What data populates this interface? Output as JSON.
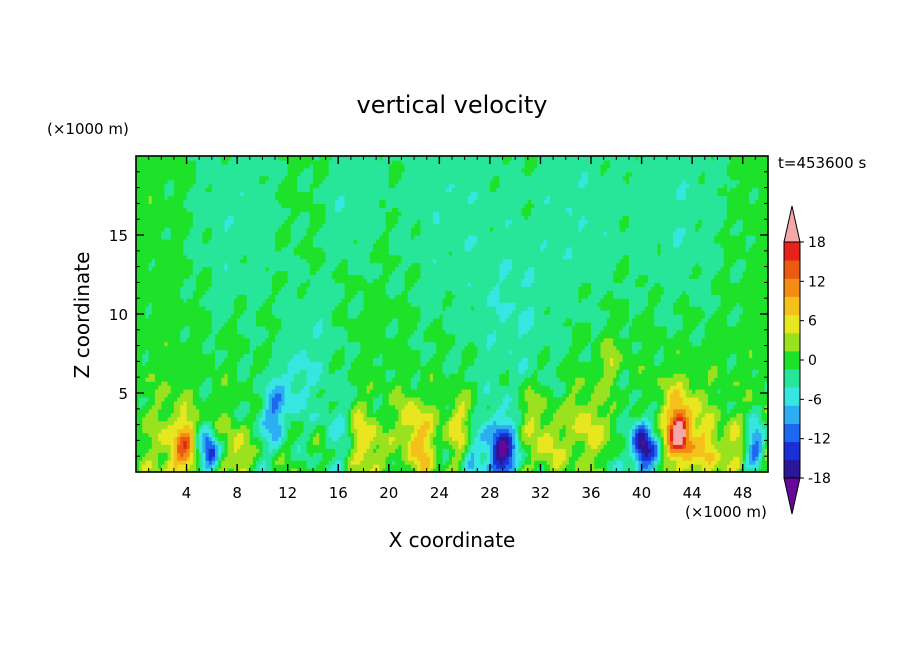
{
  "chart_data": {
    "type": "heatmap",
    "title": "vertical velocity",
    "xlabel": "X coordinate",
    "ylabel": "Z coordinate",
    "x_unit": "(×1000 m)",
    "y_unit": "(×1000 m)",
    "time_label": "t=453600 s",
    "xlim": [
      0,
      50
    ],
    "ylim": [
      0,
      20
    ],
    "x_ticks": [
      4,
      8,
      12,
      16,
      20,
      24,
      28,
      32,
      36,
      40,
      44,
      48
    ],
    "y_ticks": [
      5,
      10,
      15
    ],
    "x_tick_labels": [
      "4",
      "8",
      "12",
      "16",
      "20",
      "24",
      "28",
      "32",
      "36",
      "40",
      "44",
      "48"
    ],
    "y_tick_labels": [
      "5",
      "10",
      "15"
    ],
    "colorbar": {
      "min": -21,
      "max": 21,
      "levels": [
        -21,
        -18,
        -15,
        -12,
        -9,
        -6,
        -3,
        0,
        3,
        6,
        9,
        12,
        15,
        18,
        21
      ],
      "labels": [
        "18",
        "12",
        "6",
        "0",
        "-6",
        "-12",
        "-18"
      ],
      "label_values": [
        18,
        12,
        6,
        0,
        -6,
        -12,
        -18
      ],
      "colors": [
        "#68079a",
        "#2a1797",
        "#1a2fd6",
        "#1c68f0",
        "#2eaef2",
        "#37e6e0",
        "#27e69a",
        "#1ee22a",
        "#9ae21f",
        "#e8e61e",
        "#f4c01a",
        "#f48b12",
        "#ea5a10",
        "#e6231a",
        "#f4a8a8"
      ]
    },
    "background_value": 1.5,
    "features": [
      {
        "x": 3.0,
        "z": 1.2,
        "w": 1.6,
        "value": 8
      },
      {
        "x": 4.0,
        "z": 1.8,
        "w": 0.8,
        "value": 10
      },
      {
        "x": 6.0,
        "z": 1.1,
        "w": 0.6,
        "value": -12
      },
      {
        "x": 5.4,
        "z": 1.6,
        "w": 0.7,
        "value": -5
      },
      {
        "x": 8.0,
        "z": 1.3,
        "w": 0.9,
        "value": 8
      },
      {
        "x": 10.5,
        "z": 3.0,
        "w": 1.5,
        "value": -2
      },
      {
        "x": 12.5,
        "z": 5.5,
        "w": 1.2,
        "value": -2
      },
      {
        "x": 11.0,
        "z": 4.0,
        "w": 0.9,
        "value": -5
      },
      {
        "x": 16.0,
        "z": 2.5,
        "w": 1.4,
        "value": -2
      },
      {
        "x": 17.5,
        "z": 2.8,
        "w": 0.8,
        "value": 6
      },
      {
        "x": 18.5,
        "z": 1.5,
        "w": 1.0,
        "value": 8
      },
      {
        "x": 22.5,
        "z": 1.8,
        "w": 1.2,
        "value": 10
      },
      {
        "x": 21.5,
        "z": 3.5,
        "w": 0.8,
        "value": 6
      },
      {
        "x": 25.5,
        "z": 3.0,
        "w": 1.0,
        "value": 8
      },
      {
        "x": 26.5,
        "z": 1.2,
        "w": 0.8,
        "value": -3
      },
      {
        "x": 29.0,
        "z": 1.3,
        "w": 1.0,
        "value": -12
      },
      {
        "x": 28.5,
        "z": 1.0,
        "w": 1.4,
        "value": -5
      },
      {
        "x": 31.0,
        "z": 4.0,
        "w": 0.9,
        "value": 6
      },
      {
        "x": 32.5,
        "z": 1.8,
        "w": 1.1,
        "value": 8
      },
      {
        "x": 35.5,
        "z": 2.8,
        "w": 1.2,
        "value": 8
      },
      {
        "x": 37.5,
        "z": 7.0,
        "w": 0.8,
        "value": 6
      },
      {
        "x": 38.0,
        "z": 2.5,
        "w": 1.0,
        "value": 6
      },
      {
        "x": 39.0,
        "z": 1.5,
        "w": 1.5,
        "value": -4
      },
      {
        "x": 40.0,
        "z": 1.8,
        "w": 0.7,
        "value": -12
      },
      {
        "x": 41.0,
        "z": 1.0,
        "w": 0.9,
        "value": -8
      },
      {
        "x": 43.0,
        "z": 2.6,
        "w": 1.6,
        "value": 12
      },
      {
        "x": 43.0,
        "z": 2.5,
        "w": 0.7,
        "value": 16
      },
      {
        "x": 45.5,
        "z": 1.5,
        "w": 1.0,
        "value": 8
      },
      {
        "x": 47.5,
        "z": 1.5,
        "w": 0.8,
        "value": 6
      },
      {
        "x": 49.0,
        "z": 1.8,
        "w": 0.7,
        "value": -10
      },
      {
        "x": 42.5,
        "z": 12.0,
        "w": 2.5,
        "value": 1
      },
      {
        "x": 47.0,
        "z": 12.0,
        "w": 2.0,
        "value": 1
      },
      {
        "x": 8.0,
        "z": 16.0,
        "w": 4.0,
        "value": -2
      },
      {
        "x": 17.0,
        "z": 17.5,
        "w": 2.5,
        "value": -2
      },
      {
        "x": 25.0,
        "z": 17.0,
        "w": 5.0,
        "value": -2
      },
      {
        "x": 35.0,
        "z": 16.5,
        "w": 4.0,
        "value": -2
      },
      {
        "x": 43.0,
        "z": 17.5,
        "w": 4.0,
        "value": -2
      },
      {
        "x": 14.0,
        "z": 8.0,
        "w": 2.5,
        "value": -2
      },
      {
        "x": 30.0,
        "z": 9.0,
        "w": 3.0,
        "value": -2
      }
    ]
  }
}
